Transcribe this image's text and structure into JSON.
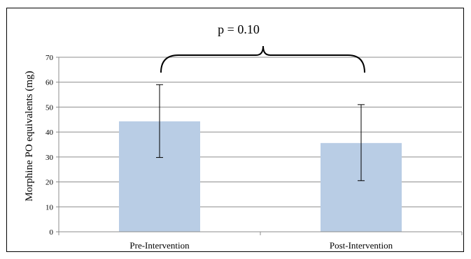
{
  "chart_data": {
    "type": "bar",
    "title": "",
    "xlabel": "",
    "ylabel": "Morphine PO equivalents (mg)",
    "ylim": [
      0,
      70
    ],
    "yticks": [
      0,
      10,
      20,
      30,
      40,
      50,
      60,
      70
    ],
    "grid": true,
    "legend": "none",
    "bar_color": "#b9cde5",
    "categories": [
      "Pre-Intervention",
      "Post-Intervention"
    ],
    "values": [
      44.3,
      35.6
    ],
    "error_low": [
      29.8,
      20.5
    ],
    "error_high": [
      59.0,
      51.0
    ],
    "annotation": "p = 0.10"
  }
}
